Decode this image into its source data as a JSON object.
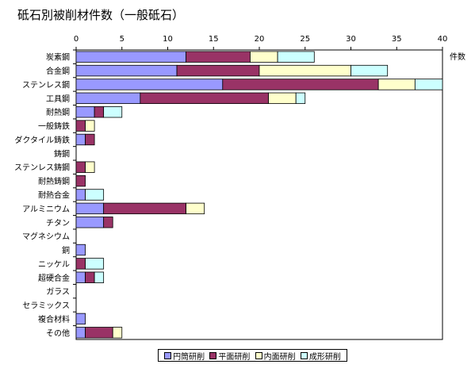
{
  "chart_data": {
    "type": "bar",
    "orientation": "horizontal",
    "stacked": true,
    "title": "砥石別被削材件数（一般砥石）",
    "unit_label": "件数",
    "xlim": [
      0,
      40
    ],
    "xticks": [
      "0",
      "5",
      "10",
      "15",
      "20",
      "25",
      "30",
      "35",
      "40"
    ],
    "grid": false,
    "legend_position": "bottom",
    "categories": [
      "炭素鋼",
      "合金鋼",
      "ステンレス鋼",
      "工具鋼",
      "耐熱鋼",
      "一般鋳鉄",
      "ダクタイル鋳鉄",
      "鋳鋼",
      "ステンレス鋳鋼",
      "耐熱鋳鋼",
      "耐熱合金",
      "アルミニウム",
      "チタン",
      "マグネシウム",
      "銅",
      "ニッケル",
      "超硬合金",
      "ガラス",
      "セラミックス",
      "複合材料",
      "その他"
    ],
    "series": [
      {
        "name": "円筒研削",
        "color": "#9999ff",
        "values": [
          12,
          11,
          16,
          7,
          2,
          0,
          1,
          0,
          0,
          0,
          1,
          3,
          3,
          0,
          1,
          0,
          1,
          0,
          0,
          1,
          1
        ]
      },
      {
        "name": "平面研削",
        "color": "#993366",
        "values": [
          7,
          9,
          17,
          14,
          1,
          1,
          1,
          0,
          1,
          1,
          0,
          9,
          1,
          0,
          0,
          1,
          1,
          0,
          0,
          0,
          3
        ]
      },
      {
        "name": "内面研削",
        "color": "#ffffcc",
        "values": [
          3,
          10,
          4,
          3,
          0,
          1,
          0,
          0,
          1,
          0,
          0,
          2,
          0,
          0,
          0,
          0,
          0,
          0,
          0,
          0,
          1
        ]
      },
      {
        "name": "成形研削",
        "color": "#ccffff",
        "values": [
          4,
          4,
          3,
          1,
          2,
          0,
          0,
          0,
          0,
          0,
          2,
          0,
          0,
          0,
          0,
          2,
          1,
          0,
          0,
          0,
          0
        ]
      }
    ]
  }
}
